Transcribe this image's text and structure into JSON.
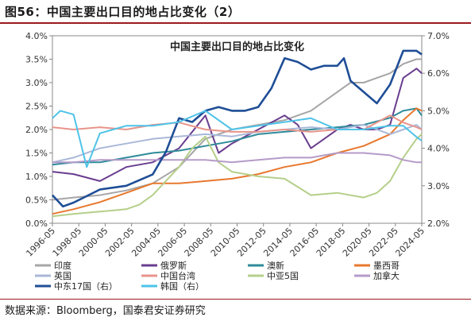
{
  "figure_title": "图56：中国主要出口目的地占比变化（2）",
  "source_note": "数据来源：Bloomberg，国泰君安证券研究",
  "chart_data": {
    "type": "line",
    "title": "中国主要出口目的地占比变化",
    "y_left": {
      "min": 0,
      "max": 4,
      "step": 0.5,
      "format": "percent1"
    },
    "y_right": {
      "min": 2,
      "max": 7,
      "step": 1,
      "format": "percent1"
    },
    "x_ticks": [
      "1996-05",
      "1998-05",
      "2000-05",
      "2002-05",
      "2004-05",
      "2006-05",
      "2008-05",
      "2010-05",
      "2012-05",
      "2014-05",
      "2016-05",
      "2018-05",
      "2020-05",
      "2022-05",
      "2024-05"
    ],
    "legend_placement": "bottom",
    "series": [
      {
        "name": "印度",
        "axis": "left",
        "color": "#a6a6a6",
        "points": [
          [
            1996.4,
            0.5
          ],
          [
            1998,
            0.55
          ],
          [
            2000,
            0.6
          ],
          [
            2002,
            0.7
          ],
          [
            2004,
            0.85
          ],
          [
            2006,
            1.2
          ],
          [
            2008,
            1.8
          ],
          [
            2010,
            2.0
          ],
          [
            2012,
            2.1
          ],
          [
            2014,
            2.2
          ],
          [
            2016,
            2.4
          ],
          [
            2018,
            2.8
          ],
          [
            2019,
            3.0
          ],
          [
            2020,
            3.0
          ],
          [
            2021,
            3.1
          ],
          [
            2022,
            3.2
          ],
          [
            2023,
            3.4
          ],
          [
            2024,
            3.5
          ],
          [
            2024.4,
            3.5
          ]
        ]
      },
      {
        "name": "俄罗斯",
        "axis": "left",
        "color": "#6a3d8f",
        "points": [
          [
            1996.4,
            1.1
          ],
          [
            1998,
            1.05
          ],
          [
            2000,
            0.9
          ],
          [
            2002,
            1.2
          ],
          [
            2004,
            1.3
          ],
          [
            2006,
            1.6
          ],
          [
            2008,
            2.3
          ],
          [
            2009,
            1.5
          ],
          [
            2010,
            1.7
          ],
          [
            2012,
            2.0
          ],
          [
            2014,
            2.3
          ],
          [
            2015,
            2.1
          ],
          [
            2016,
            1.6
          ],
          [
            2017,
            1.8
          ],
          [
            2018,
            2.0
          ],
          [
            2019,
            2.1
          ],
          [
            2020,
            2.0
          ],
          [
            2021,
            2.0
          ],
          [
            2022,
            2.1
          ],
          [
            2023,
            3.1
          ],
          [
            2024,
            3.3
          ],
          [
            2024.4,
            3.2
          ]
        ]
      },
      {
        "name": "澳新",
        "axis": "left",
        "color": "#2e8b9a",
        "points": [
          [
            1996.4,
            1.25
          ],
          [
            1998,
            1.3
          ],
          [
            2000,
            1.3
          ],
          [
            2002,
            1.4
          ],
          [
            2004,
            1.5
          ],
          [
            2006,
            1.55
          ],
          [
            2008,
            1.65
          ],
          [
            2010,
            1.75
          ],
          [
            2012,
            1.9
          ],
          [
            2014,
            1.95
          ],
          [
            2016,
            2.0
          ],
          [
            2018,
            2.05
          ],
          [
            2020,
            2.1
          ],
          [
            2022,
            2.25
          ],
          [
            2023,
            2.4
          ],
          [
            2024,
            2.45
          ],
          [
            2024.4,
            2.3
          ]
        ]
      },
      {
        "name": "墨西哥",
        "axis": "left",
        "color": "#e8782e",
        "points": [
          [
            1996.4,
            0.2
          ],
          [
            1998,
            0.3
          ],
          [
            2000,
            0.45
          ],
          [
            2002,
            0.65
          ],
          [
            2004,
            0.85
          ],
          [
            2006,
            0.85
          ],
          [
            2008,
            0.9
          ],
          [
            2010,
            0.95
          ],
          [
            2012,
            1.05
          ],
          [
            2014,
            1.2
          ],
          [
            2016,
            1.3
          ],
          [
            2018,
            1.5
          ],
          [
            2020,
            1.65
          ],
          [
            2022,
            1.9
          ],
          [
            2023,
            2.2
          ],
          [
            2024,
            2.45
          ],
          [
            2024.4,
            2.4
          ]
        ]
      },
      {
        "name": "英国",
        "axis": "left",
        "color": "#a9b8d8",
        "points": [
          [
            1996.4,
            1.3
          ],
          [
            1998,
            1.4
          ],
          [
            2000,
            1.6
          ],
          [
            2002,
            1.7
          ],
          [
            2004,
            1.8
          ],
          [
            2006,
            1.85
          ],
          [
            2008,
            1.9
          ],
          [
            2010,
            1.85
          ],
          [
            2012,
            1.95
          ],
          [
            2014,
            2.0
          ],
          [
            2016,
            2.05
          ],
          [
            2018,
            2.0
          ],
          [
            2020,
            2.1
          ],
          [
            2022,
            1.9
          ],
          [
            2023,
            2.0
          ],
          [
            2024,
            2.1
          ],
          [
            2024.4,
            2.0
          ]
        ]
      },
      {
        "name": "中国台湾",
        "axis": "left",
        "color": "#e8948a",
        "points": [
          [
            1996.4,
            2.05
          ],
          [
            1998,
            2.0
          ],
          [
            2000,
            2.05
          ],
          [
            2002,
            2.0
          ],
          [
            2004,
            2.1
          ],
          [
            2006,
            2.15
          ],
          [
            2008,
            2.0
          ],
          [
            2010,
            1.95
          ],
          [
            2012,
            1.95
          ],
          [
            2014,
            2.0
          ],
          [
            2016,
            1.95
          ],
          [
            2018,
            2.0
          ],
          [
            2020,
            2.0
          ],
          [
            2022,
            2.3
          ],
          [
            2023,
            2.15
          ],
          [
            2024,
            2.05
          ],
          [
            2024.4,
            2.0
          ]
        ]
      },
      {
        "name": "中亚5国",
        "axis": "left",
        "color": "#b5cf8a",
        "points": [
          [
            1996.4,
            0.15
          ],
          [
            1998,
            0.2
          ],
          [
            2000,
            0.25
          ],
          [
            2002,
            0.3
          ],
          [
            2003,
            0.4
          ],
          [
            2004,
            0.6
          ],
          [
            2006,
            1.2
          ],
          [
            2007,
            1.6
          ],
          [
            2008,
            1.85
          ],
          [
            2009,
            1.3
          ],
          [
            2010,
            1.1
          ],
          [
            2012,
            1.0
          ],
          [
            2014,
            0.95
          ],
          [
            2016,
            0.6
          ],
          [
            2018,
            0.65
          ],
          [
            2020,
            0.55
          ],
          [
            2021,
            0.65
          ],
          [
            2022,
            0.9
          ],
          [
            2023,
            1.4
          ],
          [
            2024,
            1.8
          ],
          [
            2024.4,
            1.9
          ]
        ]
      },
      {
        "name": "加拿大",
        "axis": "left",
        "color": "#b59bc9",
        "points": [
          [
            1996.4,
            1.3
          ],
          [
            1998,
            1.3
          ],
          [
            2000,
            1.35
          ],
          [
            2002,
            1.35
          ],
          [
            2004,
            1.35
          ],
          [
            2006,
            1.35
          ],
          [
            2008,
            1.35
          ],
          [
            2010,
            1.3
          ],
          [
            2012,
            1.35
          ],
          [
            2014,
            1.4
          ],
          [
            2016,
            1.4
          ],
          [
            2018,
            1.5
          ],
          [
            2020,
            1.5
          ],
          [
            2022,
            1.45
          ],
          [
            2023,
            1.35
          ],
          [
            2024,
            1.3
          ],
          [
            2024.4,
            1.3
          ]
        ]
      },
      {
        "name": "中东17国（右）",
        "axis": "right",
        "color": "#1f4e96",
        "points": [
          [
            1996.4,
            2.75
          ],
          [
            1997.2,
            2.45
          ],
          [
            1998,
            2.55
          ],
          [
            2000,
            2.9
          ],
          [
            2002,
            3.0
          ],
          [
            2004,
            3.3
          ],
          [
            2005,
            3.9
          ],
          [
            2006,
            4.8
          ],
          [
            2007,
            4.7
          ],
          [
            2008,
            5.0
          ],
          [
            2009,
            5.1
          ],
          [
            2010,
            5.0
          ],
          [
            2011,
            5.0
          ],
          [
            2012,
            5.1
          ],
          [
            2013,
            5.6
          ],
          [
            2014,
            6.4
          ],
          [
            2015,
            6.3
          ],
          [
            2016,
            6.1
          ],
          [
            2017,
            6.2
          ],
          [
            2018,
            6.2
          ],
          [
            2018.5,
            6.4
          ],
          [
            2019,
            5.8
          ],
          [
            2020,
            5.5
          ],
          [
            2021,
            5.2
          ],
          [
            2022,
            5.7
          ],
          [
            2023,
            6.6
          ],
          [
            2024,
            6.6
          ],
          [
            2024.4,
            6.5
          ]
        ]
      },
      {
        "name": "韩国（右）",
        "axis": "right",
        "color": "#4fc3e8",
        "points": [
          [
            1996.4,
            4.8
          ],
          [
            1997,
            5.0
          ],
          [
            1998,
            4.9
          ],
          [
            1999,
            3.5
          ],
          [
            2000,
            4.4
          ],
          [
            2001,
            4.5
          ],
          [
            2002,
            4.6
          ],
          [
            2004,
            4.6
          ],
          [
            2006,
            4.7
          ],
          [
            2008,
            5.0
          ],
          [
            2010,
            4.5
          ],
          [
            2012,
            4.6
          ],
          [
            2014,
            4.7
          ],
          [
            2016,
            4.8
          ],
          [
            2018,
            4.5
          ],
          [
            2020,
            4.5
          ],
          [
            2022,
            4.6
          ],
          [
            2023,
            4.6
          ],
          [
            2024,
            4.3
          ],
          [
            2024.4,
            4.2
          ]
        ]
      }
    ]
  }
}
